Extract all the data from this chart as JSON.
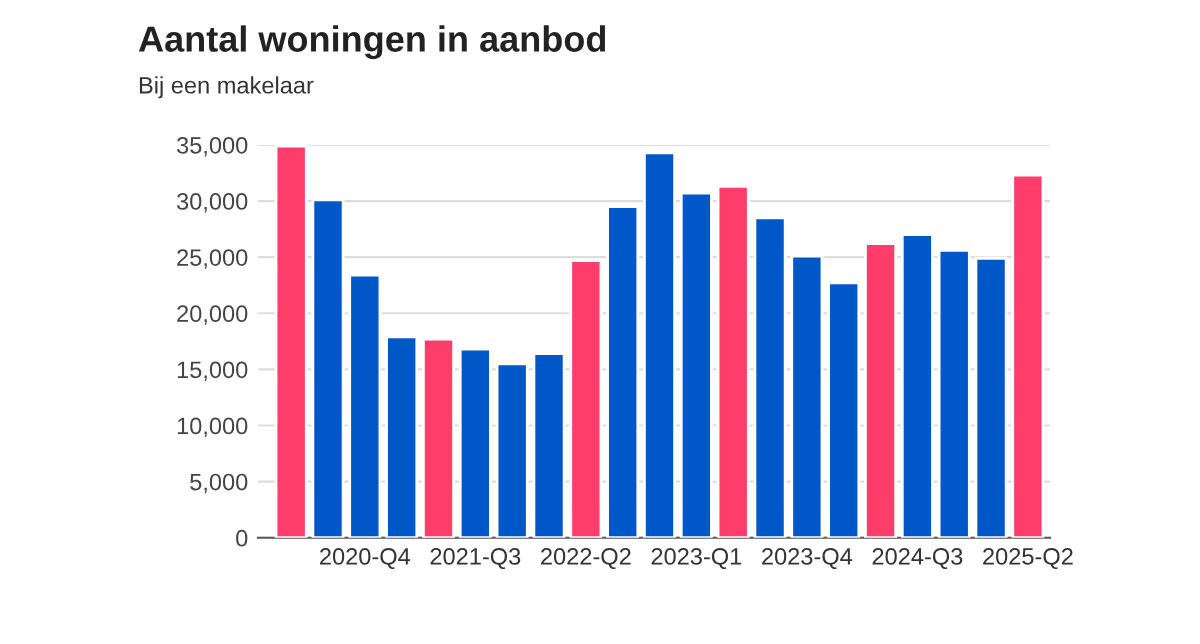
{
  "chart_data": {
    "type": "bar",
    "title": "Aantal woningen in aanbod",
    "subtitle": "Bij een makelaar",
    "categories": [
      null,
      null,
      "2020-Q4",
      null,
      null,
      "2021-Q3",
      null,
      null,
      "2022-Q2",
      null,
      null,
      "2023-Q1",
      null,
      null,
      "2023-Q4",
      null,
      null,
      "2024-Q3",
      null,
      null,
      "2025-Q2"
    ],
    "values": [
      34900,
      30100,
      23400,
      17900,
      17700,
      16800,
      15500,
      16400,
      24700,
      29500,
      34300,
      30700,
      31300,
      28500,
      25100,
      22700,
      26200,
      27000,
      25600,
      24900,
      32300
    ],
    "colors": [
      "#ff3d6b",
      "#0057c8",
      "#0057c8",
      "#0057c8",
      "#ff3d6b",
      "#0057c8",
      "#0057c8",
      "#0057c8",
      "#ff3d6b",
      "#0057c8",
      "#0057c8",
      "#0057c8",
      "#ff3d6b",
      "#0057c8",
      "#0057c8",
      "#0057c8",
      "#ff3d6b",
      "#0057c8",
      "#0057c8",
      "#0057c8",
      "#ff3d6b"
    ],
    "ylim": [
      0,
      35000
    ],
    "yticks": [
      {
        "value": 0,
        "label": "0"
      },
      {
        "value": 5000,
        "label": "5,000"
      },
      {
        "value": 10000,
        "label": "10,000"
      },
      {
        "value": 15000,
        "label": "15,000"
      },
      {
        "value": 20000,
        "label": "20,000"
      },
      {
        "value": 25000,
        "label": "25,000"
      },
      {
        "value": 30000,
        "label": "30,000"
      },
      {
        "value": 35000,
        "label": "35,000"
      }
    ],
    "grid": "y"
  }
}
